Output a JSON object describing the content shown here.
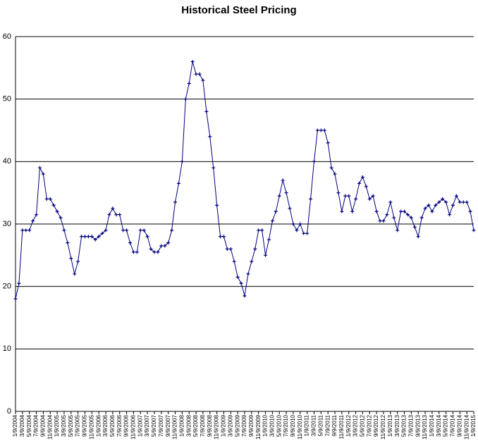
{
  "chart_data": {
    "type": "line",
    "title": "Historical Steel Pricing",
    "categories": [
      "1/9/2004",
      null,
      "3/9/2004",
      null,
      "5/9/2004",
      null,
      "7/9/2004",
      null,
      "9/9/2004",
      null,
      "11/9/2004",
      null,
      "1/9/2005",
      null,
      "3/9/2005",
      null,
      "5/9/2005",
      null,
      "7/9/2005",
      null,
      "9/9/2005",
      null,
      "11/9/2005",
      null,
      "1/9/2006",
      null,
      "3/9/2006",
      null,
      "5/9/2006",
      null,
      "7/9/2006",
      null,
      "9/9/2006",
      null,
      "11/9/2006",
      null,
      "1/9/2007",
      null,
      "3/9/2007",
      null,
      "5/9/2007",
      null,
      "7/9/2007",
      null,
      "9/9/2007",
      null,
      "11/9/2007",
      null,
      "1/9/2008",
      null,
      "3/9/2008",
      null,
      "5/9/2008",
      null,
      "7/9/2008",
      null,
      "9/9/2008",
      null,
      "11/9/2008",
      null,
      "1/9/2009",
      null,
      "3/9/2009",
      null,
      "5/9/2009",
      null,
      "7/9/2009",
      null,
      "9/9/2009",
      null,
      "11/9/2009",
      null,
      "1/9/2010",
      null,
      "3/9/2010",
      null,
      "5/9/2010",
      null,
      "7/9/2010",
      null,
      "9/9/2010",
      null,
      "11/9/2010",
      null,
      "1/9/2011",
      null,
      "3/9/2011",
      null,
      "5/9/2011",
      null,
      "7/9/2011",
      null,
      "9/9/2011",
      null,
      "11/9/2011",
      null,
      "1/9/2012",
      null,
      "3/9/2012",
      null,
      "5/9/2012",
      null,
      "7/9/2012",
      null,
      "9/9/2012",
      null,
      "11/9/2012",
      null,
      "1/9/2013",
      null,
      "3/9/2013",
      null,
      "5/9/2013",
      null,
      "7/9/2013",
      null,
      "9/9/2013",
      null,
      "11/9/2013",
      null,
      "1/9/2014",
      null,
      "3/9/2014",
      null,
      "5/9/2014",
      null,
      "7/9/2014",
      null,
      "9/9/2014",
      null,
      "11/9/2014",
      null,
      "1/9/2015"
    ],
    "values": [
      18,
      20.5,
      29,
      29,
      29,
      30.5,
      31.5,
      39,
      38,
      34,
      34,
      33,
      32,
      31,
      29,
      27,
      24.5,
      22,
      24,
      28,
      28,
      28,
      28,
      27.5,
      28,
      28.5,
      29,
      31.5,
      32.5,
      31.5,
      31.5,
      29,
      29,
      27,
      25.5,
      25.5,
      29,
      29,
      28,
      26,
      25.5,
      25.5,
      26.5,
      26.5,
      27,
      29,
      33.5,
      36.5,
      40,
      50,
      52.5,
      56,
      54,
      54,
      53,
      48,
      44,
      39,
      33,
      28,
      28,
      26,
      26,
      24,
      21.5,
      20.5,
      18.5,
      22,
      24,
      26,
      29,
      29,
      25,
      27.5,
      30.5,
      32,
      34.5,
      37,
      35,
      32.5,
      30,
      29,
      30,
      28.5,
      28.5,
      34,
      40,
      45,
      45,
      45,
      43,
      39,
      38,
      35,
      32,
      34.5,
      34.5,
      32,
      34,
      36.5,
      37.5,
      36,
      34,
      34.5,
      32,
      30.5,
      30.5,
      31.5,
      33.5,
      31,
      29,
      32,
      32,
      31.5,
      31,
      29.5,
      28,
      31,
      32.5,
      33,
      32,
      33,
      33.5,
      34,
      33.5,
      31.5,
      33,
      34.5,
      33.5,
      33.5,
      33.5,
      32,
      29
    ],
    "color": "#000080",
    "ylim": [
      0,
      60
    ],
    "yticks": [
      0,
      10,
      20,
      30,
      40,
      50,
      60
    ],
    "grid": true
  }
}
